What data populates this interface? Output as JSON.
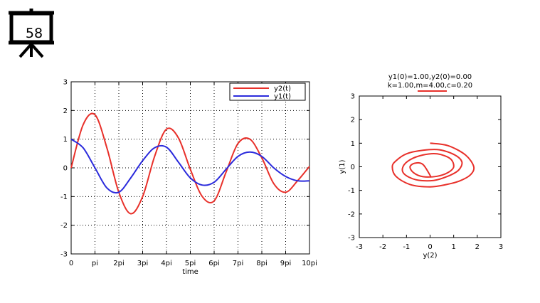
{
  "slide": {
    "number": "58",
    "icon": "projector-screen-icon"
  },
  "chart_data": [
    {
      "type": "line",
      "xlabel": "time",
      "ylabel": "",
      "xlim": [
        0,
        31.4159
      ],
      "ylim": [
        -3,
        3
      ],
      "grid": true,
      "legend": "top-right",
      "x_ticks": [
        "0",
        "pi",
        "2pi",
        "3pi",
        "4pi",
        "5pi",
        "6pi",
        "7pi",
        "8pi",
        "9pi",
        "10pi"
      ],
      "y_ticks": [
        "3",
        "2",
        "1",
        "0",
        "-1",
        "-2",
        "-3"
      ],
      "series": [
        {
          "name": "y2(t)",
          "color": "#e8302a",
          "x": [
            0,
            1.571,
            3.142,
            4.712,
            6.283,
            7.854,
            9.425,
            10.996,
            12.566,
            14.137,
            15.708,
            17.279,
            18.85,
            20.42,
            21.991,
            23.562,
            25.133,
            26.704,
            28.274,
            29.845,
            31.416
          ],
          "values": [
            0,
            1.5,
            1.85,
            0.7,
            -0.85,
            -1.6,
            -1.0,
            0.4,
            1.35,
            1.05,
            -0.05,
            -1.0,
            -1.15,
            -0.15,
            0.85,
            1.0,
            0.35,
            -0.55,
            -0.85,
            -0.45,
            0.05
          ]
        },
        {
          "name": "y1(t)",
          "color": "#2b2bdc",
          "x": [
            0,
            1.571,
            3.142,
            4.712,
            6.283,
            7.854,
            9.425,
            10.996,
            12.566,
            14.137,
            15.708,
            17.279,
            18.85,
            20.42,
            21.991,
            23.562,
            25.133,
            26.704,
            28.274,
            29.845,
            31.416
          ],
          "values": [
            1.0,
            0.7,
            0.0,
            -0.7,
            -0.85,
            -0.35,
            0.25,
            0.7,
            0.72,
            0.2,
            -0.35,
            -0.6,
            -0.5,
            -0.05,
            0.4,
            0.55,
            0.4,
            0.0,
            -0.3,
            -0.45,
            -0.45
          ]
        }
      ]
    },
    {
      "type": "line",
      "title": "y1(0)=1.00,y2(0)=0.00",
      "subtitle": "k=1.00,m=4.00,c=0.20",
      "xlabel": "y(2)",
      "ylabel": "y(1)",
      "xlim": [
        -3,
        3
      ],
      "ylim": [
        -3,
        3
      ],
      "grid": false,
      "x_ticks": [
        "-3",
        "-2",
        "-1",
        "0",
        "1",
        "2",
        "3"
      ],
      "y_ticks": [
        "3",
        "2",
        "1",
        "0",
        "-1",
        "-2",
        "-3"
      ],
      "series": [
        {
          "color": "#e8302a",
          "x": [
            0,
            0.75,
            1.5,
            1.85,
            1.7,
            1.25,
            0.7,
            0,
            -0.85,
            -1.45,
            -1.6,
            -1.45,
            -1.0,
            -0.3,
            0.4,
            1.05,
            1.35,
            1.2,
            0.75,
            0.15,
            -0.6,
            -1.1,
            -1.15,
            -0.85,
            -0.3,
            0.3,
            0.85,
            1.0,
            0.75,
            0.3,
            -0.3,
            -0.7,
            -0.85,
            -0.65,
            -0.3,
            0.05
          ],
          "values": [
            1.0,
            0.9,
            0.5,
            0.0,
            -0.35,
            -0.6,
            -0.75,
            -0.85,
            -0.75,
            -0.4,
            0.0,
            0.25,
            0.55,
            0.7,
            0.72,
            0.5,
            0.2,
            -0.15,
            -0.4,
            -0.58,
            -0.55,
            -0.3,
            0.0,
            0.3,
            0.5,
            0.55,
            0.35,
            0.0,
            -0.25,
            -0.4,
            -0.42,
            -0.25,
            0.0,
            0.15,
            0.1,
            -0.45
          ]
        }
      ]
    }
  ]
}
